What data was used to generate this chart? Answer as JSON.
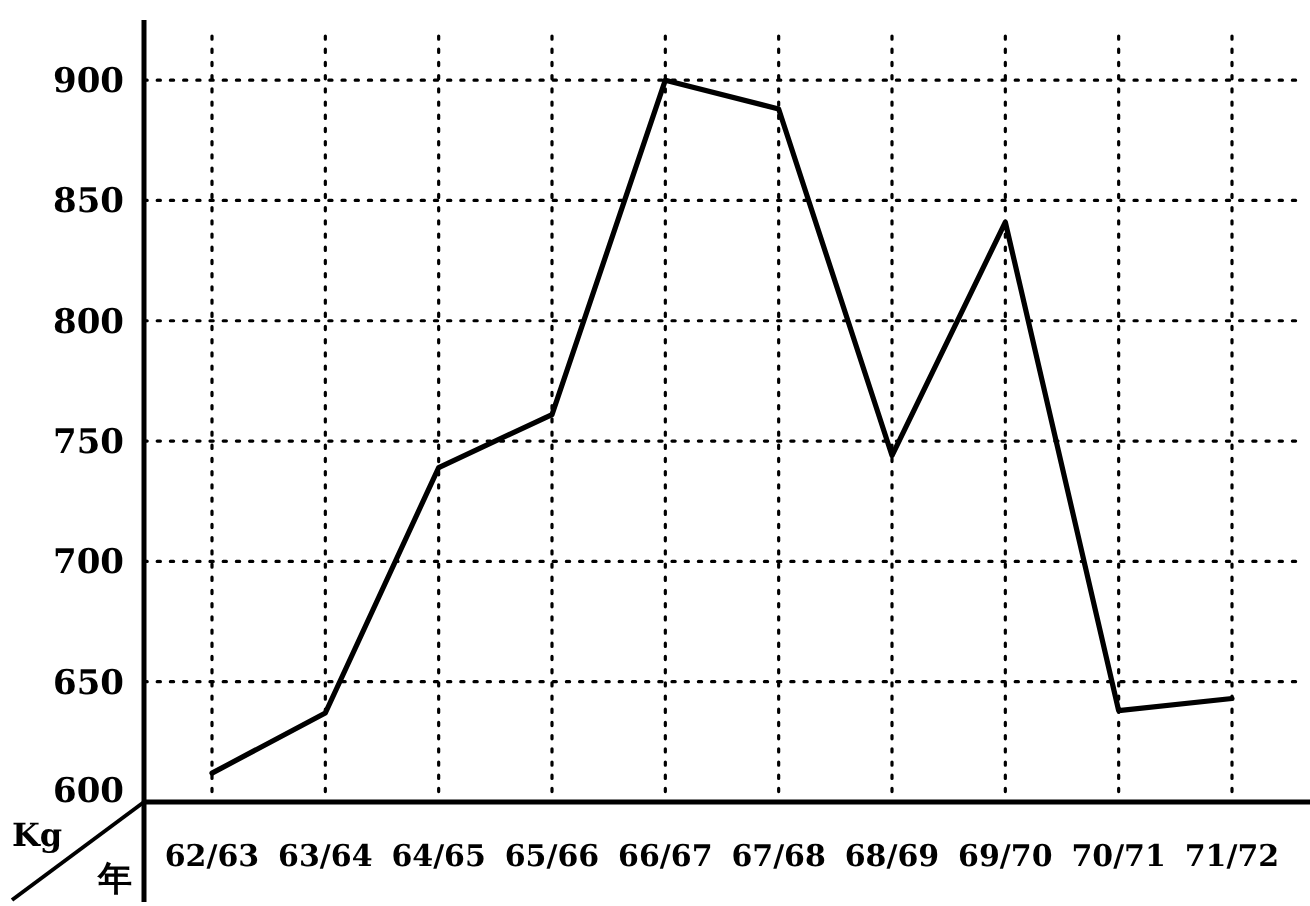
{
  "chart_data": {
    "type": "line",
    "xlabel": "年",
    "ylabel": "Kg",
    "categories": [
      "62/63",
      "63/64",
      "64/65",
      "65/66",
      "66/67",
      "67/68",
      "68/69",
      "69/70",
      "70/71",
      "71/72"
    ],
    "series": [
      {
        "color": "#000000",
        "values": [
          612,
          637,
          739,
          761,
          900,
          888,
          744,
          841,
          638,
          643
        ]
      }
    ],
    "ylim": [
      600,
      925
    ],
    "yticks": [
      600,
      650,
      700,
      750,
      800,
      850,
      900
    ],
    "grid": true,
    "marker": "none",
    "line_style": "solid"
  }
}
